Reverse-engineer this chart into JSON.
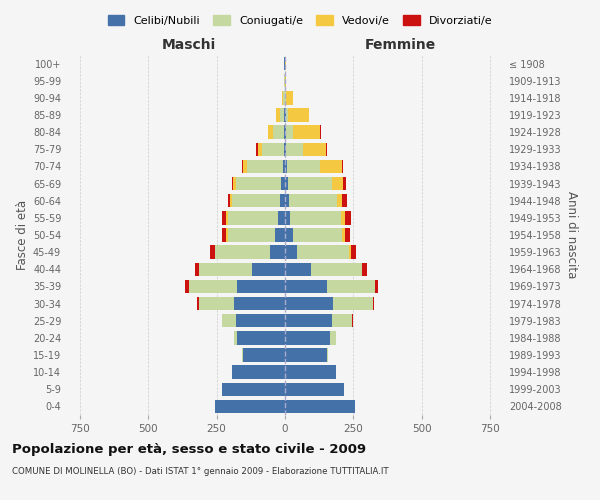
{
  "age_groups": [
    "0-4",
    "5-9",
    "10-14",
    "15-19",
    "20-24",
    "25-29",
    "30-34",
    "35-39",
    "40-44",
    "45-49",
    "50-54",
    "55-59",
    "60-64",
    "65-69",
    "70-74",
    "75-79",
    "80-84",
    "85-89",
    "90-94",
    "95-99",
    "100+"
  ],
  "birth_years": [
    "2004-2008",
    "1999-2003",
    "1994-1998",
    "1989-1993",
    "1984-1988",
    "1979-1983",
    "1974-1978",
    "1969-1973",
    "1964-1968",
    "1959-1963",
    "1954-1958",
    "1949-1953",
    "1944-1948",
    "1939-1943",
    "1934-1938",
    "1929-1933",
    "1924-1928",
    "1919-1923",
    "1914-1918",
    "1909-1913",
    "≤ 1908"
  ],
  "colors": {
    "celibi": "#4472a8",
    "coniugati": "#c5d8a0",
    "vedovi": "#f5c842",
    "divorziati": "#cc1111"
  },
  "legend_labels": [
    "Celibi/Nubili",
    "Coniugati/e",
    "Vedovi/e",
    "Divorziati/e"
  ],
  "title": "Popolazione per età, sesso e stato civile - 2009",
  "subtitle": "COMUNE DI MOLINELLA (BO) - Dati ISTAT 1° gennaio 2009 - Elaborazione TUTTITALIA.IT",
  "xlabel_left": "Maschi",
  "xlabel_right": "Femmine",
  "ylabel_left": "Fasce di età",
  "ylabel_right": "Anni di nascita",
  "xlim": 800,
  "maschi": {
    "celibi": [
      255,
      230,
      195,
      155,
      175,
      180,
      185,
      175,
      120,
      55,
      35,
      25,
      20,
      15,
      8,
      5,
      3,
      2,
      1,
      1,
      2
    ],
    "coniugati": [
      0,
      0,
      0,
      2,
      10,
      50,
      130,
      175,
      195,
      200,
      175,
      185,
      175,
      165,
      130,
      80,
      40,
      15,
      5,
      1,
      0
    ],
    "vedovi": [
      0,
      0,
      0,
      0,
      0,
      0,
      0,
      0,
      0,
      0,
      5,
      5,
      5,
      10,
      15,
      15,
      20,
      15,
      5,
      0,
      0
    ],
    "divorziati": [
      0,
      0,
      0,
      0,
      0,
      0,
      5,
      15,
      15,
      20,
      15,
      15,
      10,
      5,
      5,
      5,
      0,
      0,
      0,
      0,
      0
    ]
  },
  "femmine": {
    "nubili": [
      255,
      215,
      185,
      155,
      165,
      170,
      175,
      155,
      95,
      45,
      28,
      20,
      15,
      12,
      8,
      5,
      3,
      2,
      1,
      1,
      1
    ],
    "coniugate": [
      0,
      0,
      0,
      3,
      20,
      75,
      145,
      175,
      185,
      190,
      180,
      185,
      175,
      160,
      120,
      60,
      25,
      10,
      3,
      0,
      0
    ],
    "vedove": [
      0,
      0,
      0,
      0,
      0,
      0,
      0,
      0,
      0,
      5,
      10,
      15,
      20,
      40,
      80,
      85,
      100,
      75,
      25,
      3,
      1
    ],
    "divorziate": [
      0,
      0,
      0,
      0,
      0,
      2,
      5,
      10,
      20,
      20,
      20,
      20,
      15,
      10,
      5,
      5,
      2,
      0,
      0,
      0,
      0
    ]
  },
  "background_color": "#f5f5f5",
  "grid_color": "#cccccc"
}
